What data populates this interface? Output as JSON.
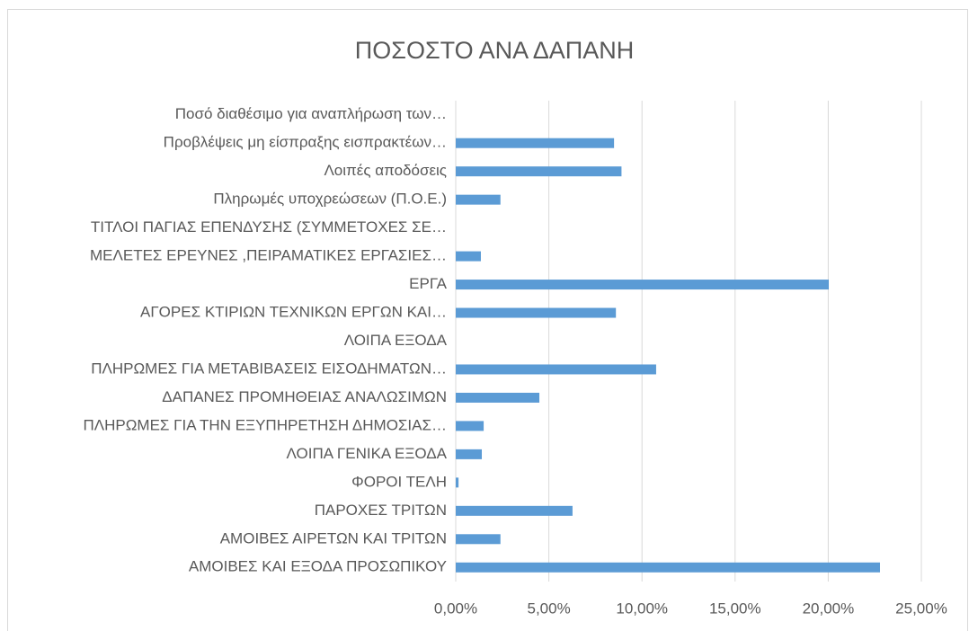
{
  "chart_data": {
    "type": "barh",
    "title": "ΠΟΣΟΣΤΟ ΑΝΑ ΔΑΠΑΝΗ",
    "categories": [
      "Ποσό διαθέσιμο για αναπλήρωση των…",
      "Προβλέψεις μη είσπραξης εισπρακτέων…",
      "Λοιπές αποδόσεις",
      "Πληρωμές υποχρεώσεων (Π.Ο.Ε.)",
      "ΤΙΤΛΟΙ ΠΑΓΙΑΣ ΕΠΕΝΔΥΣΗΣ (ΣΥΜΜΕΤΟΧΕΣ ΣΕ…",
      "ΜΕΛΕΤΕΣ ΕΡΕΥΝΕΣ ,ΠΕΙΡΑΜΑΤΙΚΕΣ ΕΡΓΑΣΙΕΣ…",
      "ΕΡΓΑ",
      "ΑΓΟΡΕΣ ΚΤΙΡΙΩΝ ΤΕΧΝΙΚΩΝ ΕΡΓΩΝ ΚΑΙ…",
      "ΛΟΙΠΑ ΕΞΟΔΑ",
      "ΠΛΗΡΩΜΕΣ ΓΙΑ ΜΕΤΑΒΙΒΑΣΕΙΣ ΕΙΣΟΔΗΜΑΤΩΝ…",
      "ΔΑΠΑΝΕΣ ΠΡΟΜΗΘΕΙΑΣ ΑΝΑΛΩΣΙΜΩΝ",
      "ΠΛΗΡΩΜΕΣ ΓΙΑ ΤΗΝ ΕΞΥΠΗΡΕΤΗΣΗ ΔΗΜΟΣΙΑΣ…",
      "ΛΟΙΠΑ ΓΕΝΙΚΑ ΕΞΟΔΑ",
      "ΦΟΡΟΙ ΤΕΛΗ",
      "ΠΑΡΟΧΕΣ ΤΡΙΤΩΝ",
      "ΑΜΟΙΒΕΣ ΑΙΡΕΤΩΝ ΚΑΙ ΤΡΙΤΩΝ",
      "ΑΜΟΙΒΕΣ ΚΑΙ ΕΞΟΔΑ ΠΡΟΣΩΠΙΚΟΥ"
    ],
    "values": [
      0,
      8.5,
      8.9,
      2.4,
      0,
      1.35,
      20.03,
      8.6,
      0,
      10.76,
      4.49,
      1.5,
      1.4,
      0.15,
      6.27,
      2.4,
      22.78
    ],
    "color": "#5b9bd5",
    "xlim": [
      0,
      25
    ],
    "xticks": [
      {
        "value": 0,
        "label": "0,00%"
      },
      {
        "value": 5,
        "label": "5,00%"
      },
      {
        "value": 10,
        "label": "10,00%"
      },
      {
        "value": 15,
        "label": "15,00%"
      },
      {
        "value": 20,
        "label": "20,00%"
      },
      {
        "value": 25,
        "label": "25,00%"
      }
    ],
    "grid": true
  }
}
